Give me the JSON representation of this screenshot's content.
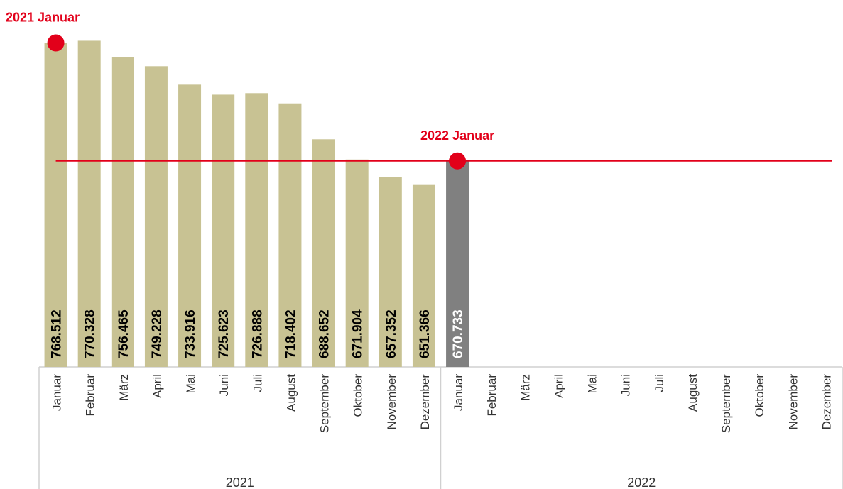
{
  "chart_data": {
    "type": "bar",
    "ylim": [
      500000,
      800000
    ],
    "groups": [
      {
        "label": "2021",
        "color": "#c8c293",
        "value_label_color": "#000000",
        "categories": [
          "Januar",
          "Februar",
          "März",
          "April",
          "Mai",
          "Juni",
          "Juli",
          "August",
          "September",
          "Oktober",
          "November",
          "Dezember"
        ],
        "values": [
          768512,
          770328,
          756465,
          749228,
          733916,
          725623,
          726888,
          718402,
          688652,
          671904,
          657352,
          651366
        ],
        "value_labels": [
          "768.512",
          "770.328",
          "756.465",
          "749.228",
          "733.916",
          "725.623",
          "726.888",
          "718.402",
          "688.652",
          "671.904",
          "657.352",
          "651.366"
        ]
      },
      {
        "label": "2022",
        "color": "#808080",
        "value_label_color": "#ffffff",
        "categories": [
          "Januar",
          "Februar",
          "März",
          "April",
          "Mai",
          "Juni",
          "Juli",
          "August",
          "September",
          "Oktober",
          "November",
          "Dezember"
        ],
        "values": [
          670733,
          null,
          null,
          null,
          null,
          null,
          null,
          null,
          null,
          null,
          null,
          null
        ],
        "value_labels": [
          "670.733",
          null,
          null,
          null,
          null,
          null,
          null,
          null,
          null,
          null,
          null,
          null
        ]
      }
    ],
    "annotations": [
      {
        "text": "2021 Januar",
        "group": 0,
        "index": 0,
        "color": "#e2001a",
        "line": false
      },
      {
        "text": "2022 Januar",
        "group": 1,
        "index": 0,
        "color": "#e2001a",
        "line": true
      }
    ]
  }
}
